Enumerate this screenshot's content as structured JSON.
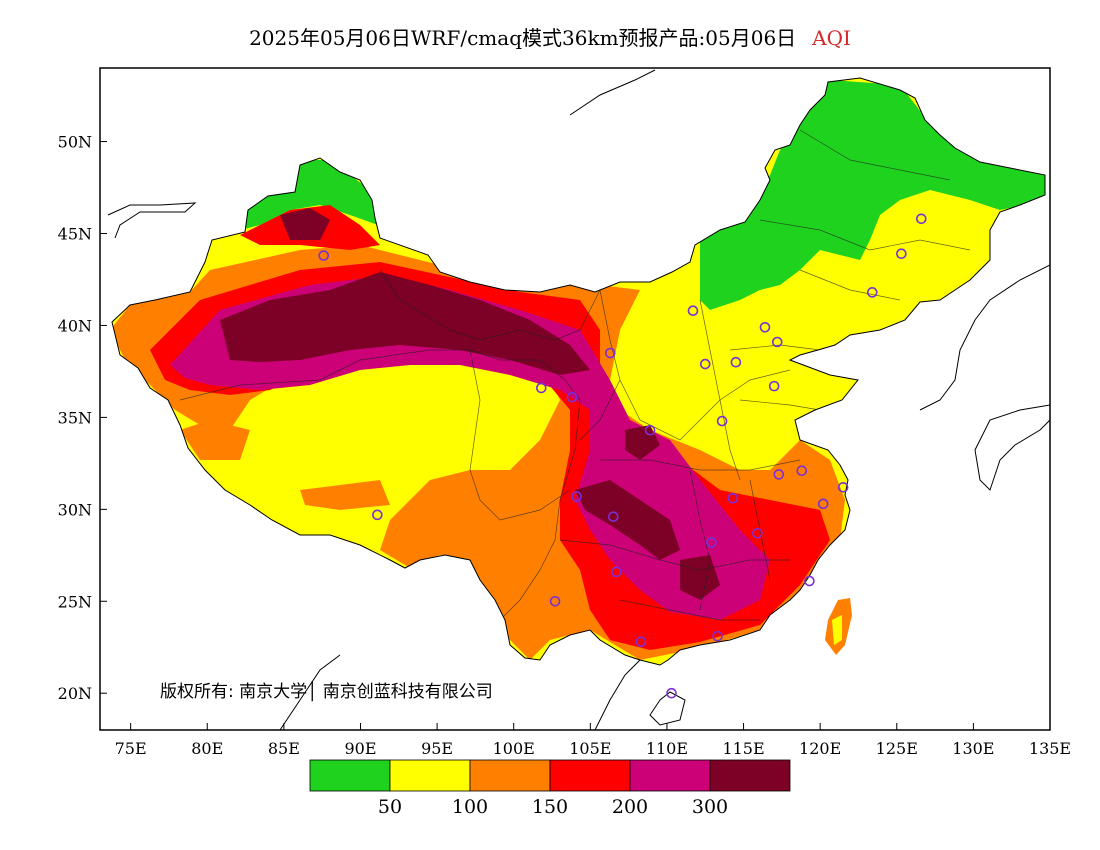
{
  "title": {
    "main": "2025年05月06日WRF/cmaq模式36km预报产品:05月06日",
    "variable": "AQI",
    "variable_color": "#d42a2a"
  },
  "map": {
    "lon_range": [
      73,
      135
    ],
    "lat_range": [
      18,
      54
    ],
    "lon_ticks": [
      "75E",
      "80E",
      "85E",
      "90E",
      "95E",
      "100E",
      "105E",
      "110E",
      "115E",
      "120E",
      "125E",
      "130E",
      "135E"
    ],
    "lat_ticks": [
      "20N",
      "25N",
      "30N",
      "35N",
      "40N",
      "45N",
      "50N"
    ],
    "copyright": "版权所有: 南京大学│ 南京创蓝科技有限公司"
  },
  "legend": {
    "colors": [
      "#1ed21e",
      "#ffff00",
      "#ff8000",
      "#ff0000",
      "#cc0077",
      "#7d0026"
    ],
    "labels": [
      "50",
      "100",
      "150",
      "200",
      "300"
    ]
  },
  "stations": [
    [
      87.6,
      43.8
    ],
    [
      91.1,
      29.7
    ],
    [
      101.8,
      36.6
    ],
    [
      103.8,
      36.1
    ],
    [
      106.3,
      38.5
    ],
    [
      104.1,
      30.7
    ],
    [
      106.5,
      29.6
    ],
    [
      106.7,
      26.6
    ],
    [
      102.7,
      25.0
    ],
    [
      108.9,
      34.3
    ],
    [
      111.7,
      40.8
    ],
    [
      112.5,
      37.9
    ],
    [
      114.5,
      38.0
    ],
    [
      116.4,
      39.9
    ],
    [
      117.2,
      39.1
    ],
    [
      117.0,
      36.7
    ],
    [
      113.6,
      34.8
    ],
    [
      114.3,
      30.6
    ],
    [
      112.9,
      28.2
    ],
    [
      115.9,
      28.7
    ],
    [
      117.3,
      31.9
    ],
    [
      118.8,
      32.1
    ],
    [
      120.2,
      30.3
    ],
    [
      121.5,
      31.2
    ],
    [
      119.3,
      26.1
    ],
    [
      113.3,
      23.1
    ],
    [
      108.3,
      22.8
    ],
    [
      110.3,
      20.0
    ],
    [
      123.4,
      41.8
    ],
    [
      125.3,
      43.9
    ],
    [
      126.6,
      45.8
    ]
  ]
}
